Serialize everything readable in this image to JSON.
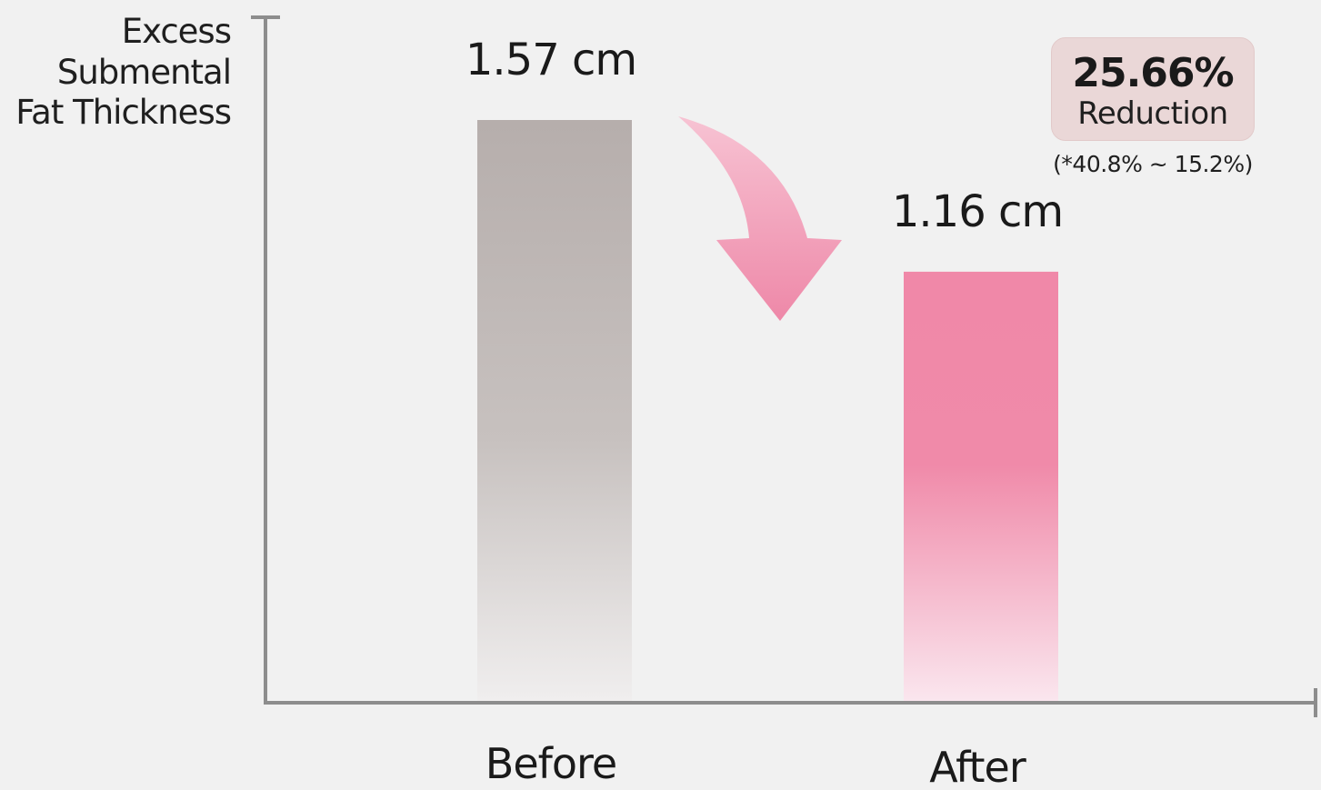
{
  "chart_data": {
    "type": "bar",
    "ylabel_lines": [
      "Excess",
      "Submental",
      "Fat Thickness"
    ],
    "categories": [
      "Before",
      "After"
    ],
    "values": [
      1.57,
      1.16
    ],
    "value_labels": [
      "1.57 cm",
      "1.16 cm"
    ],
    "ylim": [
      0,
      1.57
    ],
    "grid": false,
    "bar_colors": [
      "#b6aeac",
      "#f088a8"
    ],
    "arrow_color": "#f085a8",
    "annotation": {
      "reduction_value": "25.66%",
      "reduction_word": "Reduction",
      "range": "(*40.8% ~ 15.2%)",
      "placement": "top-right"
    }
  }
}
